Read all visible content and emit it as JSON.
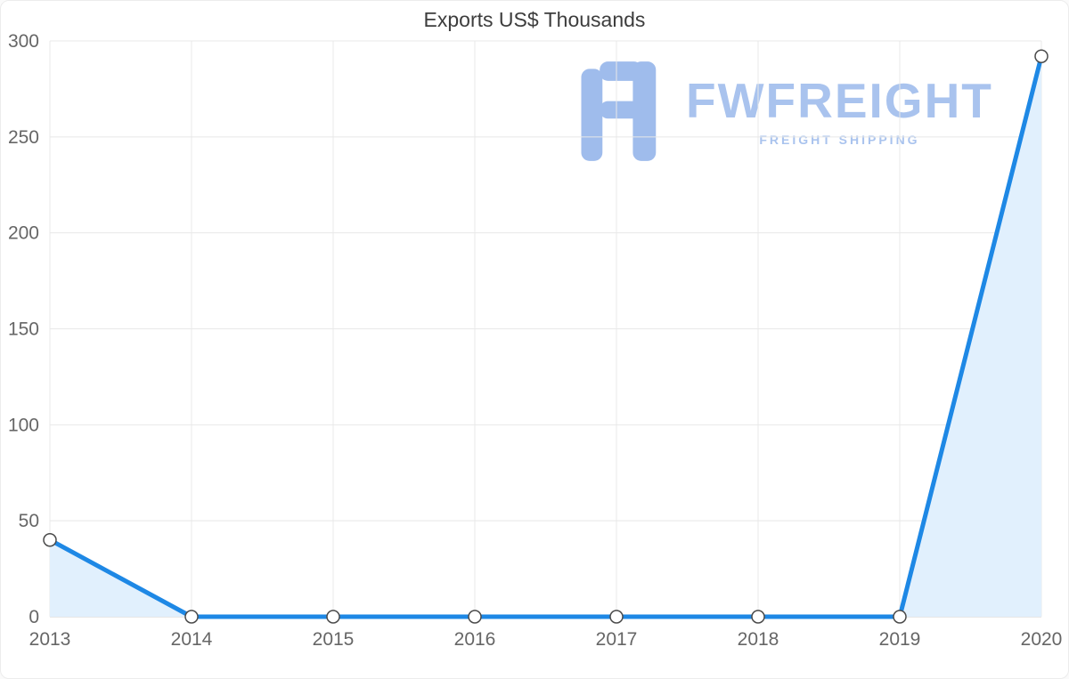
{
  "chart_data": {
    "type": "area",
    "title": "Exports US$ Thousands",
    "categories": [
      "2013",
      "2014",
      "2015",
      "2016",
      "2017",
      "2018",
      "2019",
      "2020"
    ],
    "values": [
      40,
      0,
      0,
      0,
      0,
      0,
      0,
      292
    ],
    "xlabel": "",
    "ylabel": "",
    "ylim": [
      0,
      300
    ],
    "yticks": [
      0,
      50,
      100,
      150,
      200,
      250,
      300
    ],
    "grid": true,
    "legend": "none",
    "line_color": "#1e88e5",
    "fill_color": "#e1f0fd",
    "gridline_color": "#e8e8e8",
    "axis_line_color": "#cccccc",
    "tick_label_color": "#666666",
    "marker_fill": "#ffffff",
    "marker_stroke": "#4a4a4a"
  },
  "watermark": {
    "brand": "FWFREIGHT",
    "tagline": "FREIGHT SHIPPING",
    "color": "#a9c3ee",
    "logo_color": "#9fbcec"
  }
}
